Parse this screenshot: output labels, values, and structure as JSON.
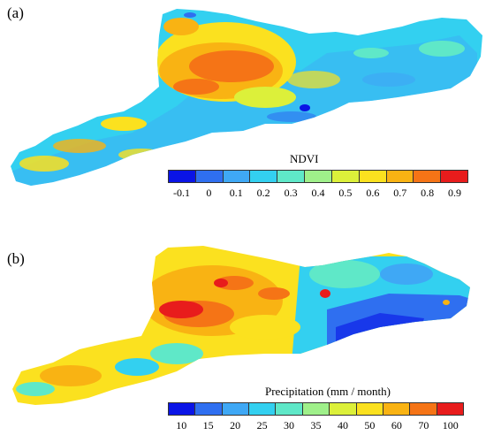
{
  "panel_a": {
    "label": "(a)",
    "legend": {
      "title": "NDVI",
      "ticks": [
        "-0.1",
        "0",
        "0.1",
        "0.2",
        "0.3",
        "0.4",
        "0.5",
        "0.6",
        "0.7",
        "0.8",
        "0.9"
      ],
      "colors": [
        "#0a14e6",
        "#2f6ff0",
        "#3fa8f5",
        "#33d0f0",
        "#5fe8c8",
        "#9ff08a",
        "#dcf03a",
        "#fbe11f",
        "#f9b313",
        "#f57416",
        "#e81c1c"
      ]
    }
  },
  "panel_b": {
    "label": "(b)",
    "legend": {
      "title": "Precipitation (mm / month)",
      "ticks": [
        "10",
        "15",
        "20",
        "25",
        "30",
        "35",
        "40",
        "50",
        "60",
        "70",
        "100"
      ],
      "colors": [
        "#0a14e6",
        "#2f6ff0",
        "#3fa8f5",
        "#33d0f0",
        "#5fe8c8",
        "#9ff08a",
        "#dcf03a",
        "#fbe11f",
        "#f9b313",
        "#f57416",
        "#e81c1c"
      ]
    }
  }
}
